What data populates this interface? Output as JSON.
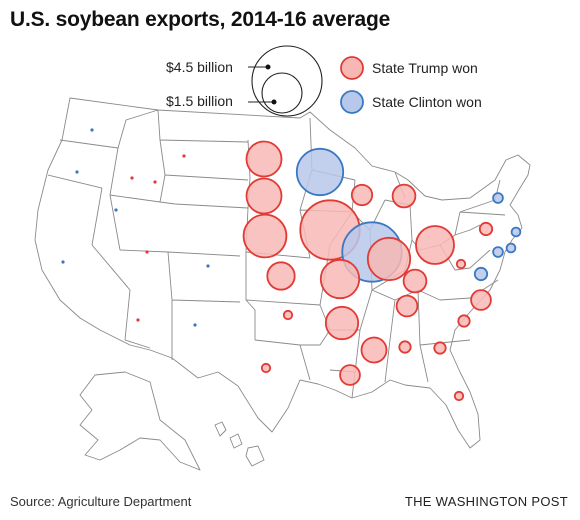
{
  "title": "U.S. soybean exports, 2014-16 average",
  "source": "Source: Agriculture Department",
  "credit": "THE WASHINGTON POST",
  "legend": {
    "size_large_label": "$4.5 billion",
    "size_small_label": "$1.5 billion",
    "size_large_value": 4.5,
    "size_small_value": 1.5,
    "trump_label": "State Trump won",
    "clinton_label": "State Clinton won"
  },
  "colors": {
    "trump_fill": "#f7b8b5",
    "trump_stroke": "#e23a35",
    "clinton_fill": "#b7c8ea",
    "clinton_stroke": "#3a78c2",
    "state_border": "#8a8a8a"
  },
  "chart_data": {
    "type": "proportional_symbol_map",
    "unit": "billion dollars",
    "states": [
      {
        "state": "Washington",
        "winner": "Clinton",
        "value": 0.001
      },
      {
        "state": "Oregon",
        "winner": "Clinton",
        "value": 0.001
      },
      {
        "state": "California",
        "winner": "Clinton",
        "value": 0.001
      },
      {
        "state": "Nevada",
        "winner": "Clinton",
        "value": 0.001
      },
      {
        "state": "Idaho",
        "winner": "Trump",
        "value": 0.001
      },
      {
        "state": "Montana",
        "winner": "Trump",
        "value": 0.001
      },
      {
        "state": "Wyoming",
        "winner": "Trump",
        "value": 0.001
      },
      {
        "state": "Utah",
        "winner": "Trump",
        "value": 0.001
      },
      {
        "state": "Arizona",
        "winner": "Trump",
        "value": 0.001
      },
      {
        "state": "Colorado",
        "winner": "Clinton",
        "value": 0.001
      },
      {
        "state": "New Mexico",
        "winner": "Clinton",
        "value": 0.001
      },
      {
        "state": "North Dakota",
        "winner": "Trump",
        "value": 1.12
      },
      {
        "state": "South Dakota",
        "winner": "Trump",
        "value": 1.12
      },
      {
        "state": "Nebraska",
        "winner": "Trump",
        "value": 1.69
      },
      {
        "state": "Kansas",
        "winner": "Trump",
        "value": 0.69
      },
      {
        "state": "Oklahoma",
        "winner": "Trump",
        "value": 0.05
      },
      {
        "state": "Texas",
        "winner": "Trump",
        "value": 0.05
      },
      {
        "state": "Minnesota",
        "winner": "Clinton",
        "value": 1.98
      },
      {
        "state": "Iowa",
        "winner": "Trump",
        "value": 3.24
      },
      {
        "state": "Missouri",
        "winner": "Trump",
        "value": 1.35
      },
      {
        "state": "Arkansas",
        "winner": "Trump",
        "value": 0.96
      },
      {
        "state": "Louisiana",
        "winner": "Trump",
        "value": 0.36
      },
      {
        "state": "Wisconsin",
        "winner": "Trump",
        "value": 0.38
      },
      {
        "state": "Illinois",
        "winner": "Clinton",
        "value": 3.24
      },
      {
        "state": "Michigan",
        "winner": "Trump",
        "value": 0.48
      },
      {
        "state": "Indiana",
        "winner": "Trump",
        "value": 1.65
      },
      {
        "state": "Ohio",
        "winner": "Trump",
        "value": 1.32
      },
      {
        "state": "Kentucky",
        "winner": "Trump",
        "value": 0.48
      },
      {
        "state": "Tennessee",
        "winner": "Trump",
        "value": 0.4
      },
      {
        "state": "Mississippi",
        "winner": "Trump",
        "value": 0.57
      },
      {
        "state": "Alabama",
        "winner": "Trump",
        "value": 0.12
      },
      {
        "state": "Georgia",
        "winner": "Trump",
        "value": 0.12
      },
      {
        "state": "Florida",
        "winner": "Trump",
        "value": 0.03
      },
      {
        "state": "South Carolina",
        "winner": "Trump",
        "value": 0.12
      },
      {
        "state": "North Carolina",
        "winner": "Trump",
        "value": 0.36
      },
      {
        "state": "Virginia",
        "winner": "Clinton",
        "value": 0.14
      },
      {
        "state": "West Virginia",
        "winner": "Trump",
        "value": 0.01
      },
      {
        "state": "Pennsylvania",
        "winner": "Trump",
        "value": 0.14
      },
      {
        "state": "New York",
        "winner": "Clinton",
        "value": 0.09
      },
      {
        "state": "New Jersey",
        "winner": "Clinton",
        "value": 0.07
      },
      {
        "state": "Delaware",
        "winner": "Clinton",
        "value": 0.07
      },
      {
        "state": "Maryland",
        "winner": "Clinton",
        "value": 0.09
      },
      {
        "state": "Alaska",
        "winner": "Trump",
        "value": 0
      },
      {
        "state": "Hawaii",
        "winner": "Clinton",
        "value": 0
      }
    ]
  }
}
